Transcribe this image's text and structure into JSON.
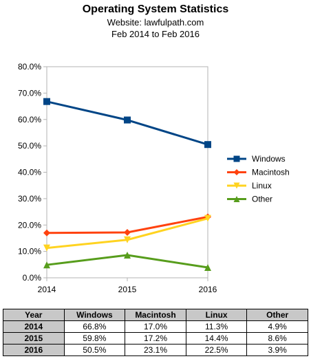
{
  "header": {
    "title": "Operating System Statistics",
    "subtitle1": "Website:  lawfulpath.com",
    "subtitle2": "Feb 2014 to Feb 2016"
  },
  "chart_data": {
    "type": "line",
    "title": "Operating System Statistics",
    "subtitle": [
      "Website:  lawfulpath.com",
      "Feb 2014 to Feb 2016"
    ],
    "x": [
      "2014",
      "2015",
      "2016"
    ],
    "y_ticks": [
      "0.0%",
      "10.0%",
      "20.0%",
      "30.0%",
      "40.0%",
      "50.0%",
      "60.0%",
      "70.0%",
      "80.0%"
    ],
    "ylim": [
      0,
      80
    ],
    "grid": false,
    "legend_position": "right",
    "series": [
      {
        "name": "Windows",
        "values": [
          66.8,
          59.8,
          50.5
        ],
        "color": "#004586",
        "marker": "square"
      },
      {
        "name": "Macintosh",
        "values": [
          17.0,
          17.2,
          23.1
        ],
        "color": "#ff420e",
        "marker": "diamond"
      },
      {
        "name": "Linux",
        "values": [
          11.3,
          14.4,
          22.5
        ],
        "color": "#ffd320",
        "marker": "triangle-down"
      },
      {
        "name": "Other",
        "values": [
          4.9,
          8.6,
          3.9
        ],
        "color": "#579d1c",
        "marker": "triangle-up"
      }
    ]
  },
  "table": {
    "headers": [
      "Year",
      "Windows",
      "Macintosh",
      "Linux",
      "Other"
    ],
    "rows": [
      [
        "2014",
        "66.8%",
        "17.0%",
        "11.3%",
        "4.9%"
      ],
      [
        "2015",
        "59.8%",
        "17.2%",
        "14.4%",
        "8.6%"
      ],
      [
        "2016",
        "50.5%",
        "23.1%",
        "22.5%",
        "3.9%"
      ]
    ]
  }
}
